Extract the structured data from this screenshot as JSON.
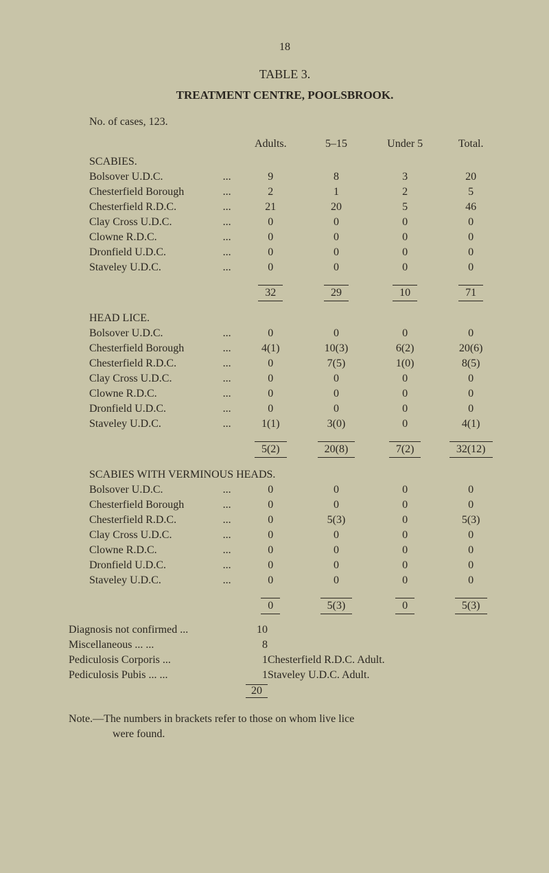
{
  "page_number": "18",
  "table_title": "TABLE 3.",
  "main_title": "TREATMENT CENTRE, POOLSBROOK.",
  "cases_line": "No. of cases, 123.",
  "headers": {
    "adults": "Adults.",
    "range": "5–15",
    "under5": "Under 5",
    "total": "Total."
  },
  "sections": {
    "scabies": {
      "title": "SCABIES.",
      "rows": [
        {
          "label": "Bolsover U.D.C.",
          "vals": [
            "9",
            "8",
            "3",
            "20"
          ]
        },
        {
          "label": "Chesterfield Borough",
          "vals": [
            "2",
            "1",
            "2",
            "5"
          ]
        },
        {
          "label": "Chesterfield R.D.C.",
          "vals": [
            "21",
            "20",
            "5",
            "46"
          ]
        },
        {
          "label": "Clay Cross U.D.C.",
          "vals": [
            "0",
            "0",
            "0",
            "0"
          ]
        },
        {
          "label": "Clowne R.D.C.",
          "vals": [
            "0",
            "0",
            "0",
            "0"
          ]
        },
        {
          "label": "Dronfield U.D.C.",
          "vals": [
            "0",
            "0",
            "0",
            "0"
          ]
        },
        {
          "label": "Staveley U.D.C.",
          "vals": [
            "0",
            "0",
            "0",
            "0"
          ]
        }
      ],
      "totals": [
        "32",
        "29",
        "10",
        "71"
      ]
    },
    "headlice": {
      "title": "HEAD LICE.",
      "rows": [
        {
          "label": "Bolsover U.D.C.",
          "vals": [
            "0",
            "0",
            "0",
            "0"
          ]
        },
        {
          "label": "Chesterfield Borough",
          "vals": [
            "4(1)",
            "10(3)",
            "6(2)",
            "20(6)"
          ]
        },
        {
          "label": "Chesterfield R.D.C.",
          "vals": [
            "0",
            "7(5)",
            "1(0)",
            "8(5)"
          ]
        },
        {
          "label": "Clay Cross U.D.C.",
          "vals": [
            "0",
            "0",
            "0",
            "0"
          ]
        },
        {
          "label": "Clowne R.D.C.",
          "vals": [
            "0",
            "0",
            "0",
            "0"
          ]
        },
        {
          "label": "Dronfield U.D.C.",
          "vals": [
            "0",
            "0",
            "0",
            "0"
          ]
        },
        {
          "label": "Staveley U.D.C.",
          "vals": [
            "1(1)",
            "3(0)",
            "0",
            "4(1)"
          ]
        }
      ],
      "totals": [
        "5(2)",
        "20(8)",
        "7(2)",
        "32(12)"
      ]
    },
    "scabies_verminous": {
      "title": "SCABIES WITH VERMINOUS HEADS.",
      "rows": [
        {
          "label": "Bolsover U.D.C.",
          "vals": [
            "0",
            "0",
            "0",
            "0"
          ]
        },
        {
          "label": "Chesterfield Borough",
          "vals": [
            "0",
            "0",
            "0",
            "0"
          ]
        },
        {
          "label": "Chesterfield R.D.C.",
          "vals": [
            "0",
            "5(3)",
            "0",
            "5(3)"
          ]
        },
        {
          "label": "Clay Cross U.D.C.",
          "vals": [
            "0",
            "0",
            "0",
            "0"
          ]
        },
        {
          "label": "Clowne R.D.C.",
          "vals": [
            "0",
            "0",
            "0",
            "0"
          ]
        },
        {
          "label": "Dronfield U.D.C.",
          "vals": [
            "0",
            "0",
            "0",
            "0"
          ]
        },
        {
          "label": "Staveley U.D.C.",
          "vals": [
            "0",
            "0",
            "0",
            "0"
          ]
        }
      ],
      "totals": [
        "0",
        "5(3)",
        "0",
        "5(3)"
      ]
    }
  },
  "diagnosis": {
    "rows": [
      {
        "label": "Diagnosis not confirmed ...",
        "num": "10",
        "note": ""
      },
      {
        "label": "Miscellaneous             ...     ...",
        "num": "8",
        "note": ""
      },
      {
        "label": "Pediculosis Corporis       ...",
        "num": "1",
        "note": "Chesterfield R.D.C. Adult."
      },
      {
        "label": "Pediculosis Pubis ...       ...",
        "num": "1",
        "note": "Staveley U.D.C. Adult."
      }
    ],
    "total": "20"
  },
  "footnote": "Note.—The numbers in brackets refer to those on whom live lice were found."
}
